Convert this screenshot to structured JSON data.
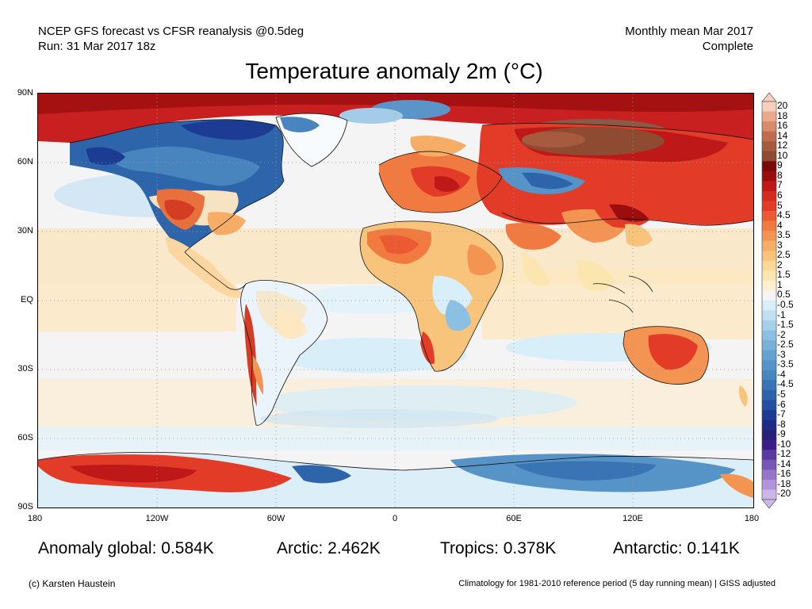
{
  "header": {
    "left_line1": "NCEP GFS forecast vs CFSR reanalysis @0.5deg",
    "left_line2": "Run: 31 Mar 2017 18z",
    "right_line1": "Monthly mean Mar 2017",
    "right_line2": "Complete"
  },
  "title": "Temperature anomaly 2m (°C)",
  "axes": {
    "lat_ticks": [
      "90N",
      "60N",
      "30N",
      "EQ",
      "30S",
      "60S",
      "90S"
    ],
    "lon_ticks": [
      "180",
      "120W",
      "60W",
      "0",
      "60E",
      "120E",
      "180"
    ]
  },
  "colorbar": {
    "labels": [
      "20",
      "18",
      "16",
      "14",
      "12",
      "10",
      "9",
      "8",
      "7",
      "6",
      "5",
      "4.5",
      "4",
      "3.5",
      "3",
      "2.5",
      "2",
      "1.5",
      "1",
      "0.5",
      "-0.5",
      "-1",
      "-1.5",
      "-2",
      "-2.5",
      "-3",
      "-3.5",
      "-4",
      "-4.5",
      "-5",
      "-6",
      "-7",
      "-8",
      "-9",
      "-10",
      "-12",
      "-14",
      "-16",
      "-18",
      "-20"
    ],
    "colors": [
      "#f6cfbd",
      "#e8a98c",
      "#d78a6c",
      "#c06a4e",
      "#a65a3e",
      "#8f4a32",
      "#7a0a0a",
      "#9c0e0e",
      "#be1818",
      "#d42a20",
      "#e23c28",
      "#ec5a34",
      "#f07a40",
      "#f49452",
      "#f6ae66",
      "#f8c47c",
      "#fad896",
      "#fce6b0",
      "#fef2cc",
      "#f4f4f4",
      "#d8eef8",
      "#bee0f2",
      "#a4d0ea",
      "#8cc0e2",
      "#78b0d8",
      "#66a2d0",
      "#5694c8",
      "#4884be",
      "#3a74b4",
      "#2e64aa",
      "#2450a0",
      "#1c3c94",
      "#1c2c86",
      "#26207a",
      "#3a1e88",
      "#5a3aa0",
      "#7856b6",
      "#9674c8",
      "#b294da",
      "#ccb6ea"
    ]
  },
  "stats": {
    "global": "Anomaly global: 0.584K",
    "arctic": "Arctic: 2.462K",
    "tropics": "Tropics: 0.378K",
    "antarctic": "Antarctic: 0.141K"
  },
  "footer": {
    "credit": "(c) Karsten Haustein",
    "note": "Climatology for 1981-2010 reference period (5 day running mean) | GISS adjusted"
  }
}
